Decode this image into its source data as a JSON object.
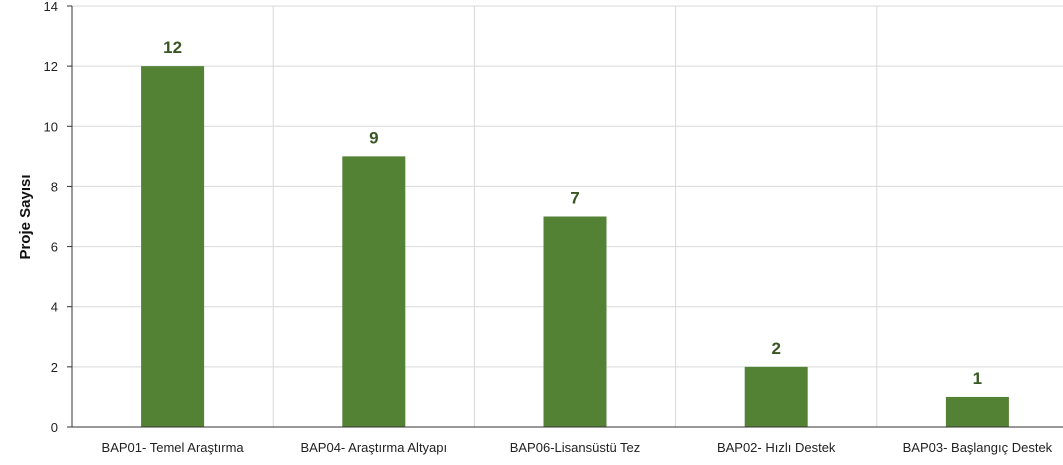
{
  "chart_data": {
    "type": "bar",
    "categories": [
      "BAP01- Temel Araştırma",
      "BAP04- Araştırma Altyapı",
      "BAP06-Lisansüstü Tez",
      "BAP02- Hızlı Destek",
      "BAP03- Başlangıç Destek"
    ],
    "values": [
      12,
      9,
      7,
      2,
      1
    ],
    "data_labels": [
      "12",
      "9",
      "7",
      "2",
      "1"
    ],
    "ylabel": "Proje Sayısı",
    "xlabel": "",
    "ylim": [
      0,
      14
    ],
    "yticks": [
      "0",
      "2",
      "4",
      "6",
      "8",
      "10",
      "12",
      "14"
    ],
    "grid": true,
    "legend": "none",
    "colors": {
      "bar": "#548235",
      "data_label": "#375623",
      "grid": "#d9d9d9",
      "axis": "#333333"
    }
  }
}
